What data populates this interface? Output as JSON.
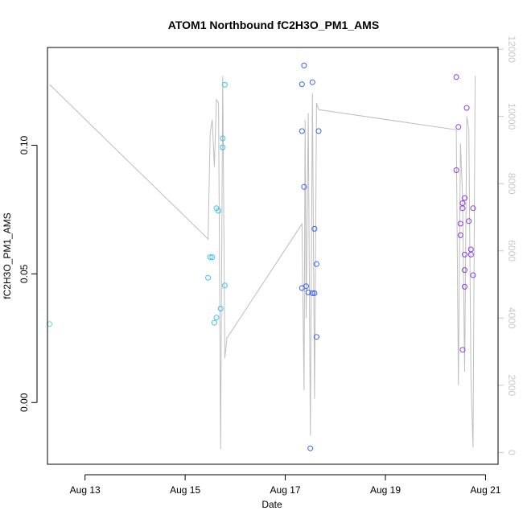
{
  "chart_data": {
    "type": "scatter",
    "title": "ATOM1 Northbound fC2H3O_PM1_AMS",
    "xlabel": "Date",
    "ylabel": "fC2H3O_PM1_AMS",
    "xlim": [
      "2011-08-12 06:00",
      "2011-08-21 06:00"
    ],
    "ylim": [
      -0.024,
      0.138
    ],
    "x_ticks": [
      {
        "value": "2011-08-13",
        "label": "Aug 13"
      },
      {
        "value": "2011-08-15",
        "label": "Aug 15"
      },
      {
        "value": "2011-08-17",
        "label": "Aug 17"
      },
      {
        "value": "2011-08-19",
        "label": "Aug 19"
      },
      {
        "value": "2011-08-21",
        "label": "Aug 21"
      }
    ],
    "y_ticks": [
      {
        "value": 0.0,
        "label": "0.00"
      },
      {
        "value": 0.05,
        "label": "0.05"
      },
      {
        "value": 0.1,
        "label": "0.10"
      }
    ],
    "y2_ticks": [
      {
        "value": 0,
        "label": "0"
      },
      {
        "value": 2000,
        "label": "2000"
      },
      {
        "value": 4000,
        "label": "4000"
      },
      {
        "value": 6000,
        "label": "6000"
      },
      {
        "value": 8000,
        "label": "8000"
      },
      {
        "value": 10000,
        "label": "10000"
      },
      {
        "value": 12000,
        "label": "12000"
      }
    ],
    "y2lim": [
      -350,
      12050
    ],
    "grid": false,
    "colors": {
      "line": "#bebebe",
      "right_axis": "#c8c8c8",
      "axis": "#000000"
    },
    "series": [
      {
        "role": "points",
        "color": "#4ee8c4",
        "points": [
          {
            "x": "2011-08-12 07:00",
            "y": 0.0305
          }
        ]
      },
      {
        "role": "points",
        "color": "#3cc4ea",
        "points": [
          {
            "x": "2011-08-15 11:00",
            "y": 0.0485
          },
          {
            "x": "2011-08-15 12:00",
            "y": 0.0565
          },
          {
            "x": "2011-08-15 13:00",
            "y": 0.0565
          },
          {
            "x": "2011-08-15 14:00",
            "y": 0.031
          },
          {
            "x": "2011-08-15 15:00",
            "y": 0.0755
          },
          {
            "x": "2011-08-15 15:00",
            "y": 0.033
          },
          {
            "x": "2011-08-15 16:00",
            "y": 0.0745
          },
          {
            "x": "2011-08-15 17:00",
            "y": 0.0365
          },
          {
            "x": "2011-08-15 18:00",
            "y": 0.0992
          },
          {
            "x": "2011-08-15 18:00",
            "y": 0.1027
          },
          {
            "x": "2011-08-15 19:00",
            "y": 0.1235
          },
          {
            "x": "2011-08-15 19:00",
            "y": 0.0455
          }
        ]
      },
      {
        "role": "points",
        "color": "#3a62ee",
        "points": [
          {
            "x": "2011-08-17 08:00",
            "y": 0.1055
          },
          {
            "x": "2011-08-17 08:00",
            "y": 0.1237
          },
          {
            "x": "2011-08-17 08:00",
            "y": 0.0445
          },
          {
            "x": "2011-08-17 09:00",
            "y": 0.0838
          },
          {
            "x": "2011-08-17 09:00",
            "y": 0.131
          },
          {
            "x": "2011-08-17 10:00",
            "y": 0.0452
          },
          {
            "x": "2011-08-17 11:00",
            "y": 0.0428
          },
          {
            "x": "2011-08-17 12:00",
            "y": -0.0178
          },
          {
            "x": "2011-08-17 13:00",
            "y": 0.1245
          },
          {
            "x": "2011-08-17 13:00",
            "y": 0.0425
          },
          {
            "x": "2011-08-17 14:00",
            "y": 0.0425
          },
          {
            "x": "2011-08-17 14:00",
            "y": 0.0675
          },
          {
            "x": "2011-08-17 15:00",
            "y": 0.0255
          },
          {
            "x": "2011-08-17 15:00",
            "y": 0.0538
          },
          {
            "x": "2011-08-17 16:00",
            "y": 0.1055
          }
        ]
      },
      {
        "role": "points",
        "color": "#8a3ae8",
        "points": [
          {
            "x": "2011-08-20 10:00",
            "y": 0.1265
          },
          {
            "x": "2011-08-20 10:00",
            "y": 0.0903
          },
          {
            "x": "2011-08-20 11:00",
            "y": 0.1071
          },
          {
            "x": "2011-08-20 12:00",
            "y": 0.0695
          },
          {
            "x": "2011-08-20 12:00",
            "y": 0.065
          },
          {
            "x": "2011-08-20 13:00",
            "y": 0.0205
          },
          {
            "x": "2011-08-20 13:00",
            "y": 0.0755
          },
          {
            "x": "2011-08-20 13:00",
            "y": 0.0775
          },
          {
            "x": "2011-08-20 14:00",
            "y": 0.0795
          },
          {
            "x": "2011-08-20 14:00",
            "y": 0.0575
          },
          {
            "x": "2011-08-20 14:00",
            "y": 0.0515
          },
          {
            "x": "2011-08-20 14:00",
            "y": 0.045
          },
          {
            "x": "2011-08-20 15:00",
            "y": 0.1145
          },
          {
            "x": "2011-08-20 16:00",
            "y": 0.0705
          },
          {
            "x": "2011-08-20 17:00",
            "y": 0.0575
          },
          {
            "x": "2011-08-20 17:00",
            "y": 0.0595
          },
          {
            "x": "2011-08-20 18:00",
            "y": 0.0755
          },
          {
            "x": "2011-08-20 18:00",
            "y": 0.0495
          }
        ]
      },
      {
        "role": "line",
        "axis": "right",
        "color": "#bebebe",
        "points": [
          {
            "x": "2011-08-12 07:00",
            "y": 10950
          },
          {
            "x": "2011-08-15 11:00",
            "y": 6350
          },
          {
            "x": "2011-08-15 12:00",
            "y": 9500
          },
          {
            "x": "2011-08-15 13:00",
            "y": 9900
          },
          {
            "x": "2011-08-15 14:00",
            "y": 8500
          },
          {
            "x": "2011-08-15 15:00",
            "y": 10500
          },
          {
            "x": "2011-08-15 16:00",
            "y": 10400
          },
          {
            "x": "2011-08-15 17:00",
            "y": 100
          },
          {
            "x": "2011-08-15 18:00",
            "y": 11200
          },
          {
            "x": "2011-08-15 19:00",
            "y": 2800
          },
          {
            "x": "2011-08-15 20:00",
            "y": 3400
          },
          {
            "x": "2011-08-17 08:00",
            "y": 6800
          },
          {
            "x": "2011-08-17 09:00",
            "y": 1850
          },
          {
            "x": "2011-08-17 09:30",
            "y": 9900
          },
          {
            "x": "2011-08-17 10:00",
            "y": 4000
          },
          {
            "x": "2011-08-17 11:00",
            "y": 10100
          },
          {
            "x": "2011-08-17 12:00",
            "y": 500
          },
          {
            "x": "2011-08-17 13:00",
            "y": 10700
          },
          {
            "x": "2011-08-17 14:00",
            "y": 1600
          },
          {
            "x": "2011-08-17 15:00",
            "y": 10400
          },
          {
            "x": "2011-08-17 16:00",
            "y": 10200
          },
          {
            "x": "2011-08-20 10:00",
            "y": 9600
          },
          {
            "x": "2011-08-20 11:00",
            "y": 2000
          },
          {
            "x": "2011-08-20 12:00",
            "y": 9200
          },
          {
            "x": "2011-08-20 13:00",
            "y": 7600
          },
          {
            "x": "2011-08-20 14:00",
            "y": 2400
          },
          {
            "x": "2011-08-20 15:00",
            "y": 10000
          },
          {
            "x": "2011-08-20 16:00",
            "y": 9600
          },
          {
            "x": "2011-08-20 17:00",
            "y": 2200
          },
          {
            "x": "2011-08-20 18:00",
            "y": 150
          },
          {
            "x": "2011-08-20 19:00",
            "y": 11200
          }
        ]
      }
    ]
  }
}
